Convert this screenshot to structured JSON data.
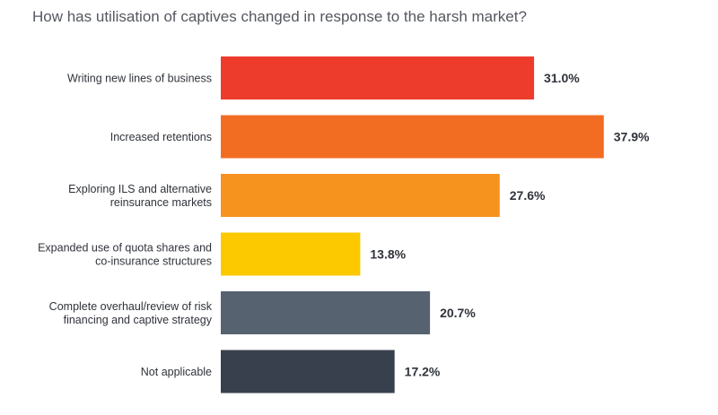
{
  "chart_data": {
    "type": "bar",
    "orientation": "horizontal",
    "title": "How has utilisation of captives changed in response to the harsh market?",
    "categories": [
      "Writing new lines of business",
      "Increased retentions",
      "Exploring ILS and alternative reinsurance markets",
      "Expanded use of quota shares and co-insurance structures",
      "Complete overhaul/review of risk financing and captive strategy",
      "Not applicable"
    ],
    "category_lines": [
      [
        "Writing new lines of business"
      ],
      [
        "Increased retentions"
      ],
      [
        "Exploring ILS and alternative",
        "reinsurance markets"
      ],
      [
        "Expanded use of quota shares and",
        "co-insurance structures"
      ],
      [
        "Complete overhaul/review of risk",
        "financing and captive strategy"
      ],
      [
        "Not applicable"
      ]
    ],
    "values": [
      31.0,
      37.9,
      27.6,
      13.8,
      20.7,
      17.2
    ],
    "value_labels": [
      "31.0%",
      "37.9%",
      "27.6%",
      "13.8%",
      "20.7%",
      "17.2%"
    ],
    "bar_colors": [
      "#ee3c2c",
      "#f26d22",
      "#f6921e",
      "#fcc800",
      "#566270",
      "#38404e"
    ],
    "xlim": [
      0,
      40
    ],
    "grid": false,
    "legend": "none"
  }
}
